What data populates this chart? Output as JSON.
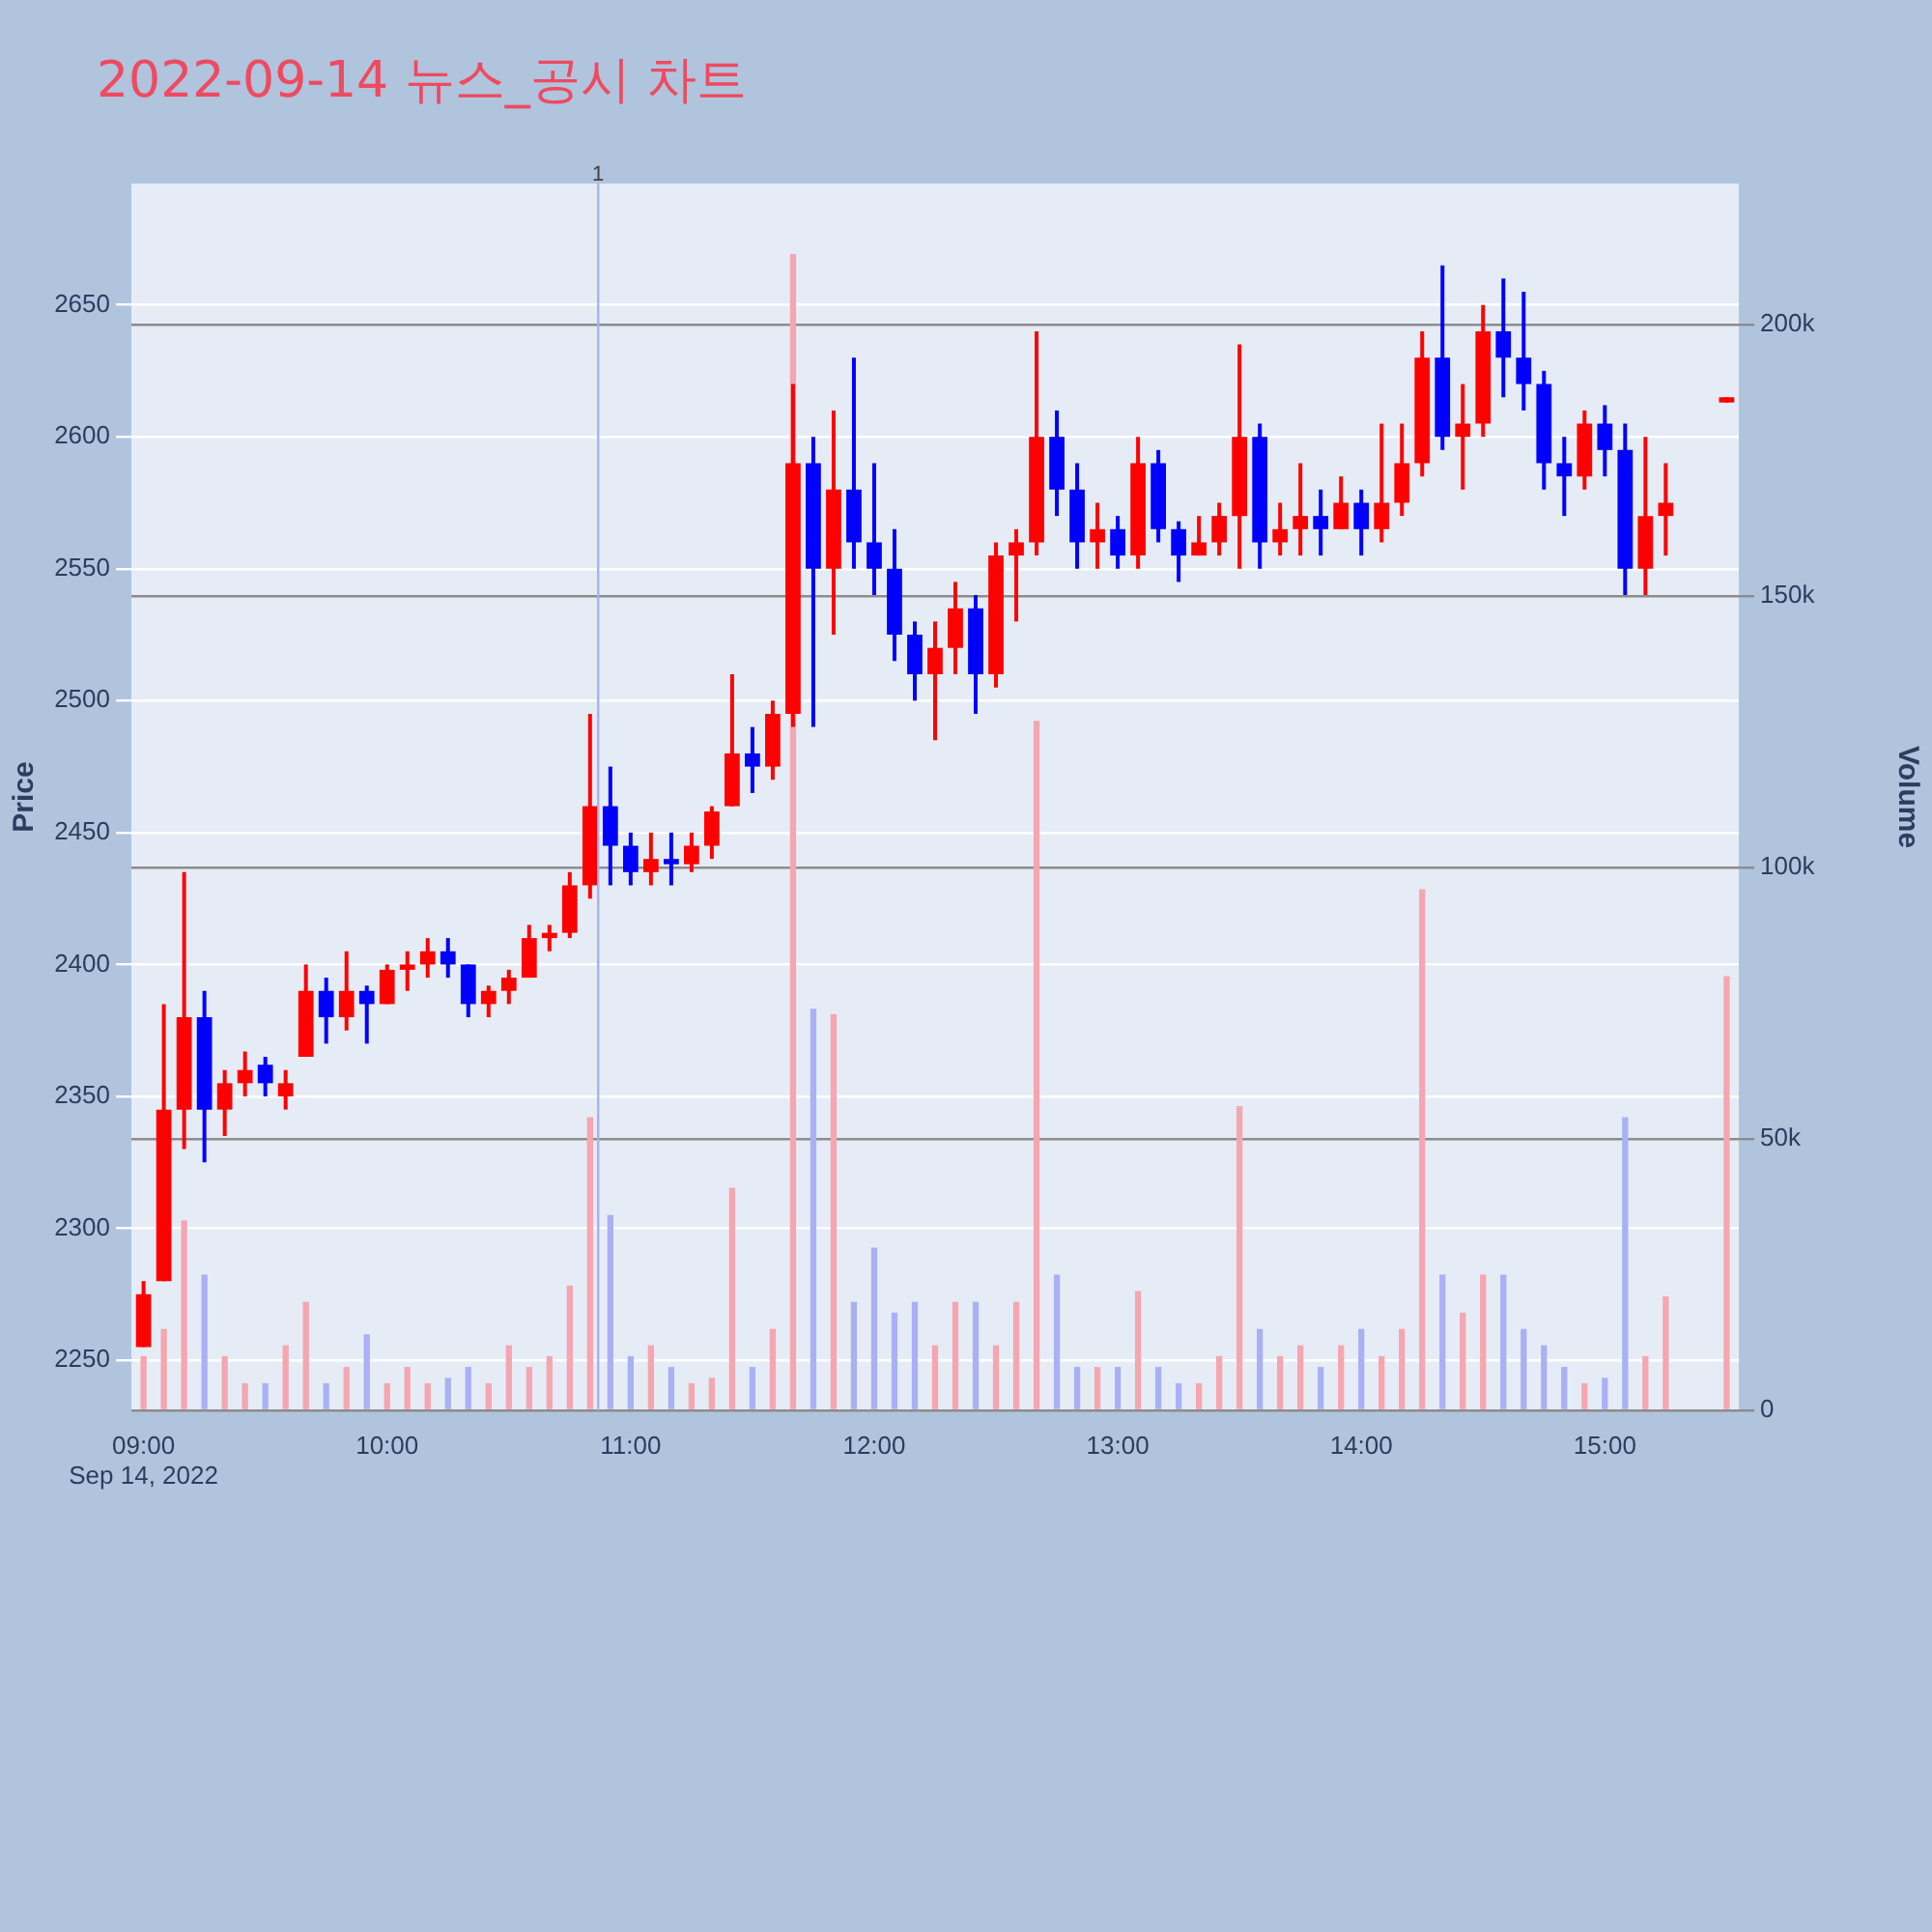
{
  "chart_data": {
    "type": "candlestick",
    "title": "2022-09-14 뉴스_공시 차트",
    "ylabel": "Price",
    "y2label": "Volume",
    "x": [
      "2022-09-14T09:00",
      "2022-09-14T09:05",
      "2022-09-14T09:10",
      "2022-09-14T09:15",
      "2022-09-14T09:20",
      "2022-09-14T09:25",
      "2022-09-14T09:30",
      "2022-09-14T09:35",
      "2022-09-14T09:40",
      "2022-09-14T09:45",
      "2022-09-14T09:50",
      "2022-09-14T09:55",
      "2022-09-14T10:00",
      "2022-09-14T10:05",
      "2022-09-14T10:10",
      "2022-09-14T10:15",
      "2022-09-14T10:20",
      "2022-09-14T10:25",
      "2022-09-14T10:30",
      "2022-09-14T10:35",
      "2022-09-14T10:40",
      "2022-09-14T10:45",
      "2022-09-14T10:50",
      "2022-09-14T10:55",
      "2022-09-14T11:00",
      "2022-09-14T11:05",
      "2022-09-14T11:10",
      "2022-09-14T11:15",
      "2022-09-14T11:20",
      "2022-09-14T11:25",
      "2022-09-14T11:30",
      "2022-09-14T11:35",
      "2022-09-14T11:40",
      "2022-09-14T11:45",
      "2022-09-14T11:50",
      "2022-09-14T11:55",
      "2022-09-14T12:00",
      "2022-09-14T12:05",
      "2022-09-14T12:10",
      "2022-09-14T12:15",
      "2022-09-14T12:20",
      "2022-09-14T12:25",
      "2022-09-14T12:30",
      "2022-09-14T12:35",
      "2022-09-14T12:40",
      "2022-09-14T12:45",
      "2022-09-14T12:50",
      "2022-09-14T12:55",
      "2022-09-14T13:00",
      "2022-09-14T13:05",
      "2022-09-14T13:10",
      "2022-09-14T13:15",
      "2022-09-14T13:20",
      "2022-09-14T13:25",
      "2022-09-14T13:30",
      "2022-09-14T13:35",
      "2022-09-14T13:40",
      "2022-09-14T13:45",
      "2022-09-14T13:50",
      "2022-09-14T13:55",
      "2022-09-14T14:00",
      "2022-09-14T14:05",
      "2022-09-14T14:10",
      "2022-09-14T14:15",
      "2022-09-14T14:20",
      "2022-09-14T14:25",
      "2022-09-14T14:30",
      "2022-09-14T14:35",
      "2022-09-14T14:40",
      "2022-09-14T14:45",
      "2022-09-14T14:50",
      "2022-09-14T14:55",
      "2022-09-14T15:00",
      "2022-09-14T15:05",
      "2022-09-14T15:10",
      "2022-09-14T15:15",
      "2022-09-14T15:30"
    ],
    "ohlc": [
      [
        2255,
        2280,
        2255,
        2275
      ],
      [
        2280,
        2385,
        2280,
        2345
      ],
      [
        2345,
        2435,
        2330,
        2380
      ],
      [
        2380,
        2390,
        2325,
        2345
      ],
      [
        2345,
        2360,
        2335,
        2355
      ],
      [
        2355,
        2367,
        2350,
        2360
      ],
      [
        2362,
        2365,
        2350,
        2355
      ],
      [
        2350,
        2360,
        2345,
        2355
      ],
      [
        2365,
        2400,
        2365,
        2390
      ],
      [
        2390,
        2395,
        2370,
        2380
      ],
      [
        2380,
        2405,
        2375,
        2390
      ],
      [
        2390,
        2392,
        2370,
        2385
      ],
      [
        2385,
        2400,
        2385,
        2398
      ],
      [
        2398,
        2405,
        2390,
        2400
      ],
      [
        2400,
        2410,
        2395,
        2405
      ],
      [
        2405,
        2410,
        2395,
        2400
      ],
      [
        2400,
        2400,
        2380,
        2385
      ],
      [
        2385,
        2392,
        2380,
        2390
      ],
      [
        2390,
        2398,
        2385,
        2395
      ],
      [
        2395,
        2415,
        2395,
        2410
      ],
      [
        2410,
        2415,
        2405,
        2412
      ],
      [
        2412,
        2435,
        2410,
        2430
      ],
      [
        2430,
        2495,
        2425,
        2460
      ],
      [
        2460,
        2475,
        2430,
        2445
      ],
      [
        2445,
        2450,
        2430,
        2435
      ],
      [
        2435,
        2450,
        2430,
        2440
      ],
      [
        2440,
        2450,
        2430,
        2438
      ],
      [
        2438,
        2450,
        2435,
        2445
      ],
      [
        2445,
        2460,
        2440,
        2458
      ],
      [
        2460,
        2510,
        2460,
        2480
      ],
      [
        2480,
        2490,
        2465,
        2475
      ],
      [
        2475,
        2500,
        2470,
        2495
      ],
      [
        2495,
        2620,
        2490,
        2590
      ],
      [
        2590,
        2600,
        2490,
        2550
      ],
      [
        2550,
        2610,
        2525,
        2580
      ],
      [
        2580,
        2630,
        2550,
        2560
      ],
      [
        2560,
        2590,
        2540,
        2550
      ],
      [
        2550,
        2565,
        2515,
        2525
      ],
      [
        2525,
        2530,
        2500,
        2510
      ],
      [
        2510,
        2530,
        2485,
        2520
      ],
      [
        2520,
        2545,
        2510,
        2535
      ],
      [
        2535,
        2540,
        2495,
        2510
      ],
      [
        2510,
        2560,
        2505,
        2555
      ],
      [
        2555,
        2565,
        2530,
        2560
      ],
      [
        2560,
        2640,
        2555,
        2600
      ],
      [
        2600,
        2610,
        2570,
        2580
      ],
      [
        2580,
        2590,
        2550,
        2560
      ],
      [
        2560,
        2575,
        2550,
        2565
      ],
      [
        2565,
        2570,
        2550,
        2555
      ],
      [
        2555,
        2600,
        2550,
        2590
      ],
      [
        2590,
        2595,
        2560,
        2565
      ],
      [
        2565,
        2568,
        2545,
        2555
      ],
      [
        2555,
        2570,
        2555,
        2560
      ],
      [
        2560,
        2575,
        2555,
        2570
      ],
      [
        2570,
        2635,
        2550,
        2600
      ],
      [
        2600,
        2605,
        2550,
        2560
      ],
      [
        2560,
        2575,
        2555,
        2565
      ],
      [
        2565,
        2590,
        2555,
        2570
      ],
      [
        2570,
        2580,
        2555,
        2565
      ],
      [
        2565,
        2585,
        2565,
        2575
      ],
      [
        2575,
        2580,
        2555,
        2565
      ],
      [
        2565,
        2605,
        2560,
        2575
      ],
      [
        2575,
        2605,
        2570,
        2590
      ],
      [
        2590,
        2640,
        2585,
        2630
      ],
      [
        2630,
        2665,
        2595,
        2600
      ],
      [
        2600,
        2620,
        2580,
        2605
      ],
      [
        2605,
        2650,
        2600,
        2640
      ],
      [
        2640,
        2660,
        2615,
        2630
      ],
      [
        2630,
        2655,
        2610,
        2620
      ],
      [
        2620,
        2625,
        2580,
        2590
      ],
      [
        2590,
        2600,
        2570,
        2585
      ],
      [
        2585,
        2610,
        2580,
        2605
      ],
      [
        2605,
        2612,
        2585,
        2595
      ],
      [
        2595,
        2605,
        2540,
        2550
      ],
      [
        2550,
        2600,
        2540,
        2570
      ],
      [
        2570,
        2590,
        2555,
        2575
      ],
      [
        2613,
        2615,
        2613,
        2615
      ]
    ],
    "colors": [
      "#ff0000",
      "#ff0000",
      "#ff0000",
      "#0000ff",
      "#ff0000",
      "#ff0000",
      "#0000ff",
      "#ff0000",
      "#ff0000",
      "#0000ff",
      "#ff0000",
      "#0000ff",
      "#ff0000",
      "#ff0000",
      "#ff0000",
      "#0000ff",
      "#0000ff",
      "#ff0000",
      "#ff0000",
      "#ff0000",
      "#ff0000",
      "#ff0000",
      "#ff0000",
      "#0000ff",
      "#0000ff",
      "#ff0000",
      "#0000ff",
      "#ff0000",
      "#ff0000",
      "#ff0000",
      "#0000ff",
      "#ff0000",
      "#ff0000",
      "#0000ff",
      "#ff0000",
      "#0000ff",
      "#0000ff",
      "#0000ff",
      "#0000ff",
      "#ff0000",
      "#ff0000",
      "#0000ff",
      "#ff0000",
      "#ff0000",
      "#ff0000",
      "#0000ff",
      "#0000ff",
      "#ff0000",
      "#0000ff",
      "#ff0000",
      "#0000ff",
      "#0000ff",
      "#ff0000",
      "#ff0000",
      "#ff0000",
      "#0000ff",
      "#ff0000",
      "#ff0000",
      "#0000ff",
      "#ff0000",
      "#0000ff",
      "#ff0000",
      "#ff0000",
      "#ff0000",
      "#0000ff",
      "#ff0000",
      "#ff0000",
      "#0000ff",
      "#0000ff",
      "#0000ff",
      "#0000ff",
      "#ff0000",
      "#0000ff",
      "#0000ff",
      "#ff0000",
      "#ff0000",
      "#ff0000"
    ],
    "series": [
      {
        "type": "bar",
        "axis": "y2",
        "values": [
          10000,
          15000,
          35000,
          25000,
          10000,
          5000,
          5000,
          12000,
          20000,
          5000,
          8000,
          14000,
          5000,
          8000,
          5000,
          6000,
          8000,
          5000,
          12000,
          8000,
          10000,
          23000,
          54000,
          36000,
          10000,
          12000,
          8000,
          5000,
          6000,
          41000,
          8000,
          15000,
          213000,
          74000,
          73000,
          20000,
          30000,
          18000,
          20000,
          12000,
          20000,
          20000,
          12000,
          20000,
          127000,
          25000,
          8000,
          8000,
          8000,
          22000,
          8000,
          5000,
          5000,
          10000,
          56000,
          15000,
          10000,
          12000,
          8000,
          12000,
          15000,
          10000,
          15000,
          96000,
          25000,
          18000,
          25000,
          25000,
          15000,
          12000,
          8000,
          5000,
          6000,
          54000,
          10000,
          21000,
          80000
        ],
        "colors": [
          "#f5a6b0",
          "#f5a6b0",
          "#f5a6b0",
          "#a9b1f4",
          "#f5a6b0",
          "#f5a6b0",
          "#a9b1f4",
          "#f5a6b0",
          "#f5a6b0",
          "#a9b1f4",
          "#f5a6b0",
          "#a9b1f4",
          "#f5a6b0",
          "#f5a6b0",
          "#f5a6b0",
          "#a9b1f4",
          "#a9b1f4",
          "#f5a6b0",
          "#f5a6b0",
          "#f5a6b0",
          "#f5a6b0",
          "#f5a6b0",
          "#f5a6b0",
          "#a9b1f4",
          "#a9b1f4",
          "#f5a6b0",
          "#a9b1f4",
          "#f5a6b0",
          "#f5a6b0",
          "#f5a6b0",
          "#a9b1f4",
          "#f5a6b0",
          "#f5a6b0",
          "#a9b1f4",
          "#f5a6b0",
          "#a9b1f4",
          "#a9b1f4",
          "#a9b1f4",
          "#a9b1f4",
          "#f5a6b0",
          "#f5a6b0",
          "#a9b1f4",
          "#f5a6b0",
          "#f5a6b0",
          "#f5a6b0",
          "#a9b1f4",
          "#a9b1f4",
          "#f5a6b0",
          "#a9b1f4",
          "#f5a6b0",
          "#a9b1f4",
          "#a9b1f4",
          "#f5a6b0",
          "#f5a6b0",
          "#f5a6b0",
          "#a9b1f4",
          "#f5a6b0",
          "#f5a6b0",
          "#a9b1f4",
          "#f5a6b0",
          "#a9b1f4",
          "#f5a6b0",
          "#f5a6b0",
          "#f5a6b0",
          "#a9b1f4",
          "#f5a6b0",
          "#f5a6b0",
          "#a9b1f4",
          "#a9b1f4",
          "#a9b1f4",
          "#a9b1f4",
          "#f5a6b0",
          "#a9b1f4",
          "#a9b1f4",
          "#f5a6b0",
          "#f5a6b0",
          "#f5a6b0"
        ]
      }
    ],
    "xlim": [
      "2022-09-14T08:57",
      "2022-09-14T15:33"
    ],
    "xticks": [
      {
        "value": "2022-09-14T09:00",
        "label": "09:00\nSep 14, 2022"
      },
      {
        "value": "2022-09-14T10:00",
        "label": "10:00"
      },
      {
        "value": "2022-09-14T11:00",
        "label": "11:00"
      },
      {
        "value": "2022-09-14T12:00",
        "label": "12:00"
      },
      {
        "value": "2022-09-14T13:00",
        "label": "13:00"
      },
      {
        "value": "2022-09-14T14:00",
        "label": "14:00"
      },
      {
        "value": "2022-09-14T15:00",
        "label": "15:00"
      }
    ],
    "ylim": [
      2231,
      2696
    ],
    "yticks": [
      2250,
      2300,
      2350,
      2400,
      2450,
      2500,
      2550,
      2600,
      2650
    ],
    "y2lim": [
      0,
      226000
    ],
    "y2ticks": [
      0,
      {
        "value": 50000,
        "label": "50k"
      },
      {
        "value": 100000,
        "label": "100k"
      },
      {
        "value": 150000,
        "label": "150k"
      },
      {
        "value": 200000,
        "label": "200k"
      }
    ],
    "grid": "y",
    "legend": false,
    "ref_lines": [
      {
        "axis": "x",
        "value": "2022-09-14T10:52",
        "label": "1",
        "color": "#a8b0f0"
      }
    ]
  }
}
